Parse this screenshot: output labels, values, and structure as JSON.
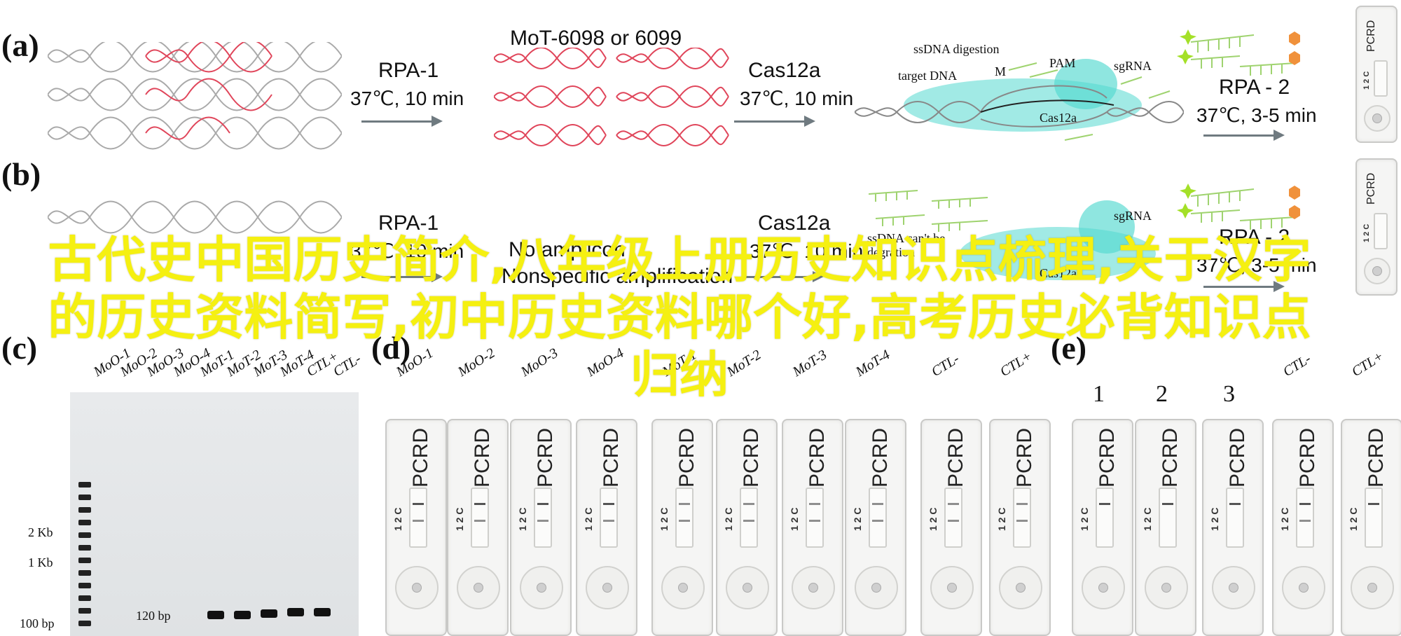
{
  "panels": {
    "a": "(a)",
    "b": "(b)",
    "c": "(c)",
    "d": "(d)",
    "e": "(e)"
  },
  "row_a": {
    "step1": {
      "title": "RPA-1",
      "cond": "37℃, 10 min"
    },
    "mid_title": "MoT-6098 or 6099",
    "step2": {
      "title": "Cas12a",
      "cond": "37℃, 10 min"
    },
    "labels": {
      "ssdna": "ssDNA digestion",
      "target": "target DNA",
      "m": "M",
      "pam": "PAM",
      "sgrna": "sgRNA",
      "cas12a": "Cas12a"
    },
    "step3": {
      "title": "RPA - 2",
      "cond": "37℃, 3-5 min"
    }
  },
  "row_b": {
    "step1": {
      "title": "RPA-1",
      "cond": "37℃, 10 min"
    },
    "mid_line1": "No amplicon",
    "mid_line2": "Nonspecific amplification",
    "step2": {
      "title": "Cas12a",
      "cond": "37℃, 10 min"
    },
    "labels": {
      "cant": "ssDNA can't be",
      "degrade": "degration",
      "sgrna": "sgRNA",
      "cas12a": "Cas12a"
    },
    "step3": {
      "title": "RPA - 2",
      "cond": "37℃, 3-5 min"
    }
  },
  "device": {
    "brand": "PCRD",
    "code": "1 2 C"
  },
  "gel": {
    "lanes": [
      "MoO-1",
      "MoO-2",
      "MoO-3",
      "MoO-4",
      "MoT-1",
      "MoT-2",
      "MoT-3",
      "MoT-4",
      "CTL+",
      "CTL-"
    ],
    "markers": [
      "2 Kb",
      "1 Kb",
      "100 bp"
    ],
    "band_label": "120 bp"
  },
  "panel_d": {
    "lanes": [
      "MoO-1",
      "MoO-2",
      "MoO-3",
      "MoO-4",
      "MoT-1",
      "MoT-2",
      "MoT-3",
      "MoT-4",
      "CTL-",
      "CTL+"
    ]
  },
  "panel_e": {
    "lanes": [
      "1",
      "2",
      "3",
      "CTL-",
      "CTL+"
    ]
  },
  "watermark": "古代史中国历史简介,八年级上册历史知识点梳理,关于汉字的历史资料简写,初中历史资料哪个好,高考历史必背知识点归纳",
  "colors": {
    "watermark": "#f5f011",
    "cas_glow": "#53d8d0",
    "mutant": "#e0455a"
  }
}
